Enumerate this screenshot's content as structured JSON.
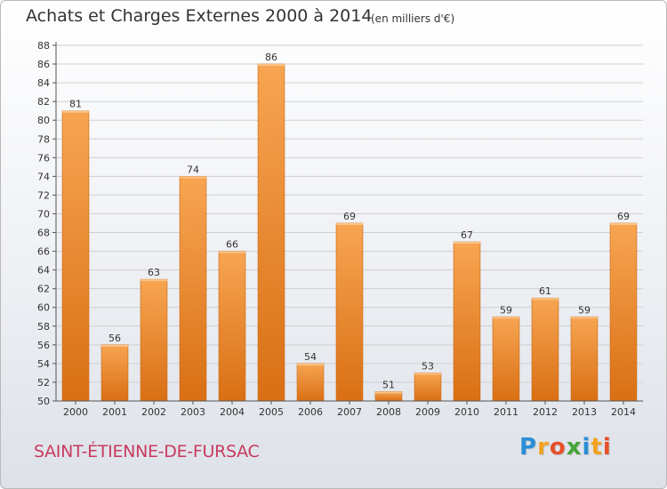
{
  "header": {
    "title": "Achats et Charges Externes 2000 à 2014",
    "unit": "(en milliers d'€)"
  },
  "footer": {
    "city": "SAINT-ÉTIENNE-DE-FURSAC",
    "logo_letters": [
      {
        "ch": "P",
        "color": "#2a8fd6"
      },
      {
        "ch": "r",
        "color": "#f4a21c"
      },
      {
        "ch": "o",
        "color": "#e8502a"
      },
      {
        "ch": "x",
        "color": "#43a636"
      },
      {
        "ch": "i",
        "color": "#2a8fd6"
      },
      {
        "ch": "t",
        "color": "#f4a21c"
      },
      {
        "ch": "i",
        "color": "#e8502a"
      }
    ]
  },
  "colors": {
    "bar_light": "#f7a552",
    "bar_dark": "#d96f14",
    "axis": "#555555",
    "grid": "#cfcfcf"
  },
  "chart_data": {
    "type": "bar",
    "categories": [
      "2000",
      "2001",
      "2002",
      "2003",
      "2004",
      "2005",
      "2006",
      "2007",
      "2008",
      "2009",
      "2010",
      "2011",
      "2012",
      "2013",
      "2014"
    ],
    "values": [
      81,
      56,
      63,
      74,
      66,
      86,
      54,
      69,
      51,
      53,
      67,
      59,
      61,
      59,
      69
    ],
    "ylim": [
      50,
      88
    ],
    "ytick_step": 2,
    "grid": true,
    "data_labels": true
  }
}
